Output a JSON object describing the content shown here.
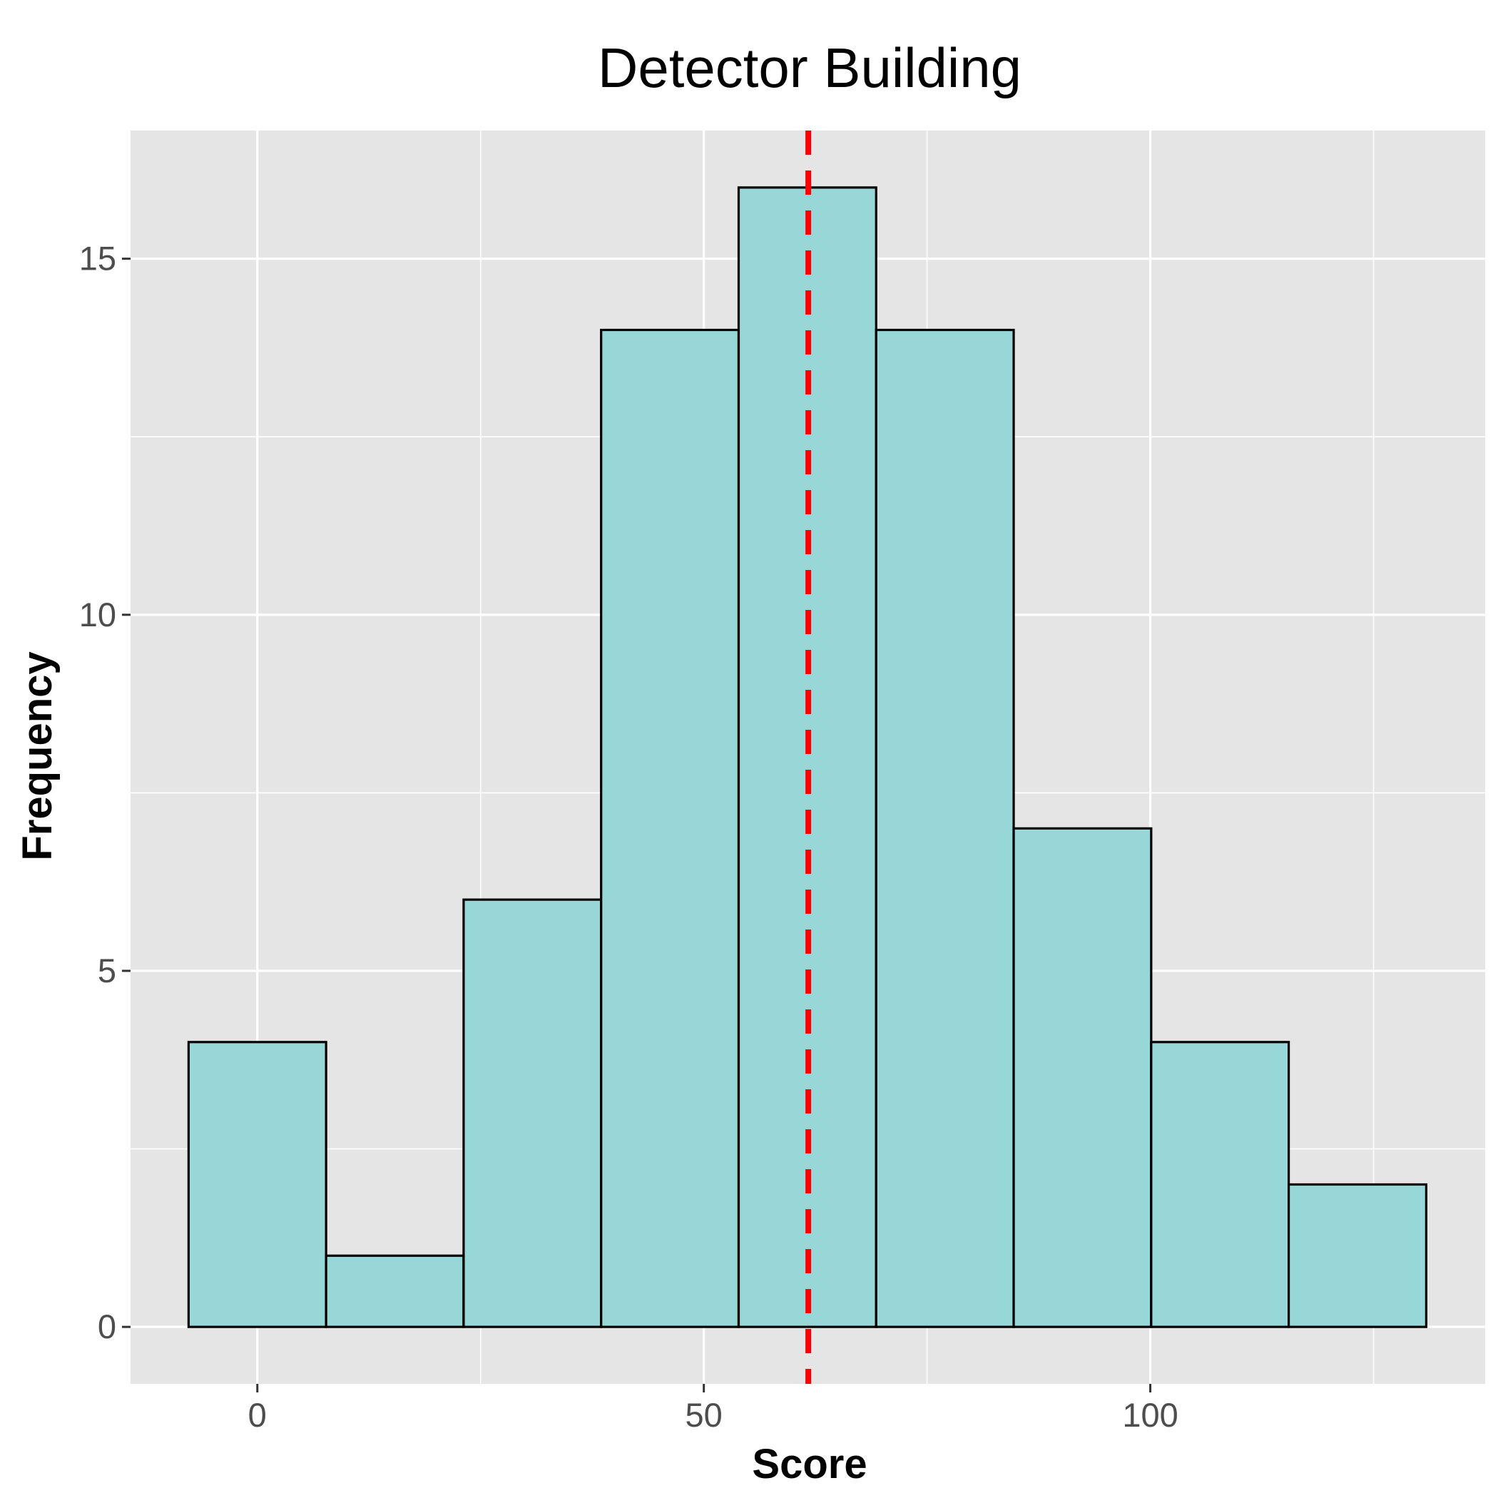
{
  "chart_data": {
    "type": "histogram",
    "title": "Detector Building",
    "xlabel": "Score",
    "ylabel": "Frequency",
    "bins": [
      {
        "x0": -7.7,
        "x1": 7.7,
        "count": 4
      },
      {
        "x0": 7.7,
        "x1": 23.1,
        "count": 1
      },
      {
        "x0": 23.1,
        "x1": 38.5,
        "count": 6
      },
      {
        "x0": 38.5,
        "x1": 53.9,
        "count": 14
      },
      {
        "x0": 53.9,
        "x1": 69.3,
        "count": 16
      },
      {
        "x0": 69.3,
        "x1": 84.7,
        "count": 14
      },
      {
        "x0": 84.7,
        "x1": 100.1,
        "count": 7
      },
      {
        "x0": 100.1,
        "x1": 115.5,
        "count": 4
      },
      {
        "x0": 115.5,
        "x1": 130.9,
        "count": 2
      }
    ],
    "reference_line": {
      "x": 61.7,
      "style": "dashed",
      "color": "#ff0000"
    },
    "xlim": [
      -14.2,
      137.5
    ],
    "ylim": [
      -0.8,
      16.8
    ],
    "x_ticks": [
      0,
      50,
      100
    ],
    "x_minor": [
      25,
      75,
      125
    ],
    "y_ticks": [
      0,
      5,
      10,
      15
    ],
    "y_minor": [
      2.5,
      7.5,
      12.5
    ],
    "colors": {
      "panel": "#e5e5e5",
      "grid": "#ffffff",
      "bar_fill": "#97d7d7",
      "bar_stroke": "#000000",
      "tick_label": "#4d4d4d"
    }
  }
}
